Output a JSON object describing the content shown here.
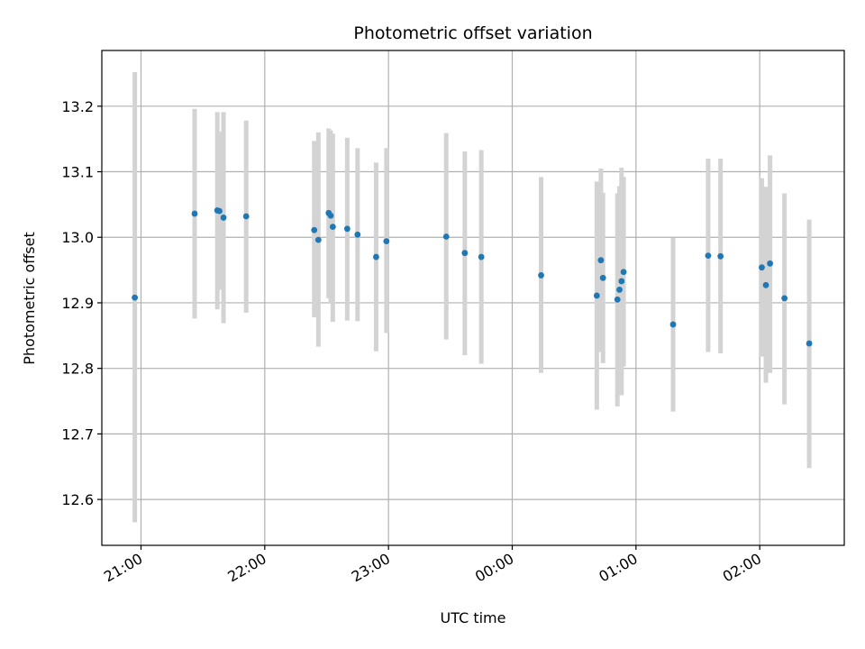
{
  "chart_data": {
    "type": "scatter",
    "title": "Photometric offset variation",
    "xlabel": "UTC time",
    "ylabel": "Photometric offset",
    "x_unit": "UTC, date rollover at 00:00",
    "xlim": [
      "20:41",
      "02:41"
    ],
    "ylim": [
      12.53,
      13.285
    ],
    "x_ticks": [
      "21:00",
      "22:00",
      "23:00",
      "00:00",
      "01:00",
      "02:00"
    ],
    "y_ticks": [
      "12.6",
      "12.7",
      "12.8",
      "12.9",
      "13.0",
      "13.1",
      "13.2"
    ],
    "grid": true,
    "colors": {
      "point": "#1f77b4",
      "errorbar": "#d3d3d3",
      "grid": "#b0b0b0"
    },
    "points": [
      {
        "t": "20:57",
        "y": 12.908,
        "lo": 12.565,
        "hi": 13.252
      },
      {
        "t": "21:26",
        "y": 13.036,
        "lo": 12.876,
        "hi": 13.196
      },
      {
        "t": "21:37",
        "y": 13.041,
        "lo": 12.89,
        "hi": 13.191
      },
      {
        "t": "21:38",
        "y": 13.04,
        "lo": 12.92,
        "hi": 13.161
      },
      {
        "t": "21:40",
        "y": 13.03,
        "lo": 12.869,
        "hi": 13.191
      },
      {
        "t": "21:51",
        "y": 13.032,
        "lo": 12.885,
        "hi": 13.178
      },
      {
        "t": "22:24",
        "y": 13.011,
        "lo": 12.878,
        "hi": 13.147
      },
      {
        "t": "22:26",
        "y": 12.996,
        "lo": 12.833,
        "hi": 13.16
      },
      {
        "t": "22:31",
        "y": 13.037,
        "lo": 12.907,
        "hi": 13.166
      },
      {
        "t": "22:32",
        "y": 13.033,
        "lo": 12.9,
        "hi": 13.163
      },
      {
        "t": "22:33",
        "y": 13.016,
        "lo": 12.871,
        "hi": 13.158
      },
      {
        "t": "22:40",
        "y": 13.013,
        "lo": 12.873,
        "hi": 13.152
      },
      {
        "t": "22:45",
        "y": 13.004,
        "lo": 12.872,
        "hi": 13.136
      },
      {
        "t": "22:54",
        "y": 12.97,
        "lo": 12.826,
        "hi": 13.114
      },
      {
        "t": "22:59",
        "y": 12.994,
        "lo": 12.854,
        "hi": 13.136
      },
      {
        "t": "23:28",
        "y": 13.001,
        "lo": 12.844,
        "hi": 13.159
      },
      {
        "t": "23:37",
        "y": 12.976,
        "lo": 12.82,
        "hi": 13.131
      },
      {
        "t": "23:45",
        "y": 12.97,
        "lo": 12.807,
        "hi": 13.133
      },
      {
        "t": "00:14",
        "y": 12.942,
        "lo": 12.793,
        "hi": 13.092
      },
      {
        "t": "00:41",
        "y": 12.911,
        "lo": 12.737,
        "hi": 13.085
      },
      {
        "t": "00:43",
        "y": 12.965,
        "lo": 12.825,
        "hi": 13.105
      },
      {
        "t": "00:44",
        "y": 12.938,
        "lo": 12.808,
        "hi": 13.068
      },
      {
        "t": "00:51",
        "y": 12.905,
        "lo": 12.742,
        "hi": 13.067
      },
      {
        "t": "00:52",
        "y": 12.92,
        "lo": 12.761,
        "hi": 13.078
      },
      {
        "t": "00:53",
        "y": 12.933,
        "lo": 12.759,
        "hi": 13.106
      },
      {
        "t": "00:54",
        "y": 12.947,
        "lo": 12.803,
        "hi": 13.092
      },
      {
        "t": "01:18",
        "y": 12.867,
        "lo": 12.734,
        "hi": 12.999
      },
      {
        "t": "01:35",
        "y": 12.972,
        "lo": 12.825,
        "hi": 13.12
      },
      {
        "t": "01:41",
        "y": 12.971,
        "lo": 12.823,
        "hi": 13.12
      },
      {
        "t": "02:01",
        "y": 12.954,
        "lo": 12.818,
        "hi": 13.09
      },
      {
        "t": "02:03",
        "y": 12.927,
        "lo": 12.778,
        "hi": 13.077
      },
      {
        "t": "02:05",
        "y": 12.96,
        "lo": 12.793,
        "hi": 13.125
      },
      {
        "t": "02:12",
        "y": 12.907,
        "lo": 12.745,
        "hi": 13.067
      },
      {
        "t": "02:24",
        "y": 12.838,
        "lo": 12.648,
        "hi": 13.027
      }
    ]
  }
}
